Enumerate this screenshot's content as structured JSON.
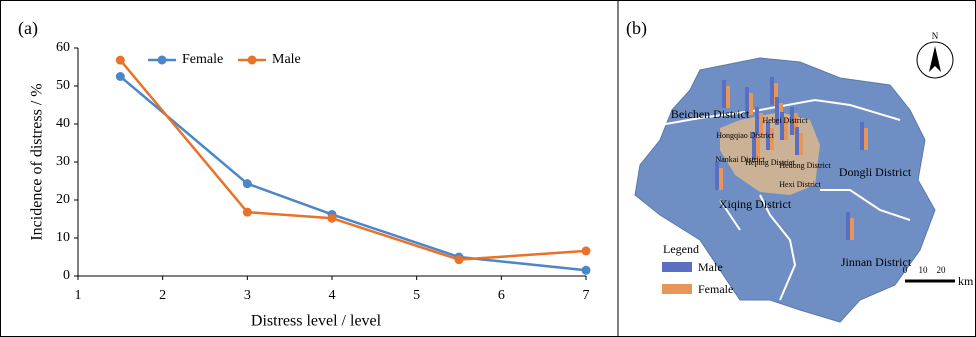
{
  "chart_data": {
    "type": "line",
    "label": "(a)",
    "x_label": "Distress level / level",
    "y_label": "Incidence of distress / %",
    "x": [
      1.5,
      3,
      4,
      5.5,
      7
    ],
    "series": [
      {
        "name": "Female",
        "color": "#4a86c8",
        "values": [
          52.5,
          24.3,
          16.2,
          5.0,
          1.5
        ]
      },
      {
        "name": "Male",
        "color": "#e8722a",
        "values": [
          56.8,
          16.8,
          15.2,
          4.3,
          6.6
        ]
      }
    ],
    "xlim": [
      1,
      7
    ],
    "xticks": [
      1,
      2,
      3,
      4,
      5,
      6,
      7
    ],
    "ylim": [
      0,
      60
    ],
    "yticks": [
      0,
      10,
      20,
      30,
      40,
      50,
      60
    ],
    "grid": false
  },
  "map": {
    "label": "(b)",
    "north": "N",
    "districts": [
      "Beichen District",
      "Hebei District",
      "Hongqiao District",
      "Nankai District",
      "Heping District",
      "Hedong District",
      "Hexi District",
      "Dongli District",
      "Xiqing District",
      "Jinnan District"
    ],
    "legend": {
      "title": "Legend",
      "items": [
        {
          "name": "Male",
          "color": "#5a6fc0"
        },
        {
          "name": "Female",
          "color": "#e8955a"
        }
      ]
    },
    "scale": {
      "ticks": [
        "0",
        "10",
        "20"
      ],
      "unit": "km"
    }
  }
}
